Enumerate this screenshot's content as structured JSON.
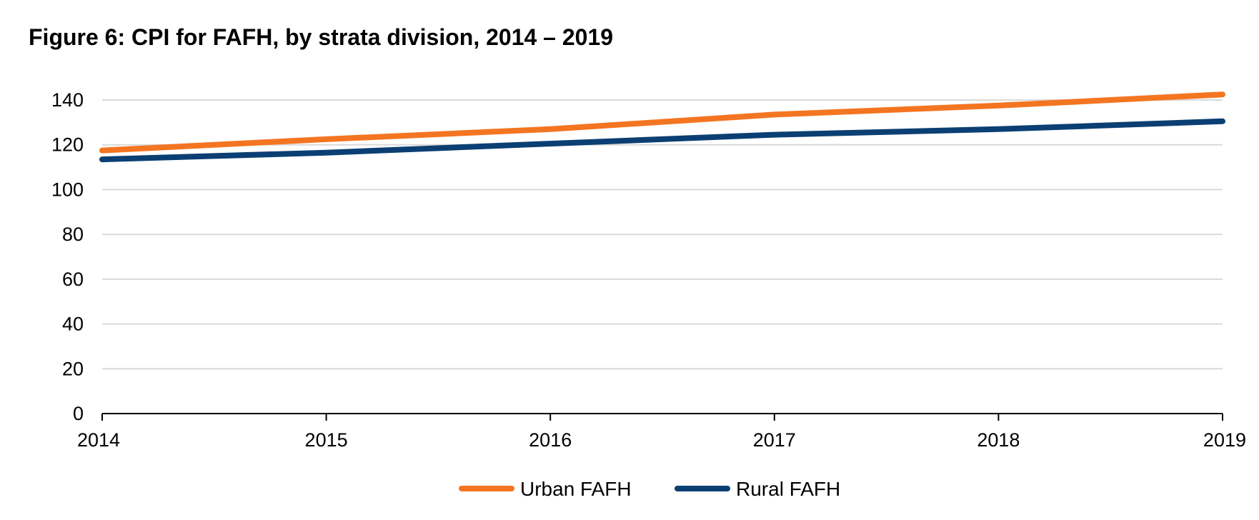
{
  "chart_data": {
    "type": "line",
    "title": "Figure 6: CPI for FAFH, by strata division, 2014 – 2019",
    "xlabel": "",
    "ylabel": "",
    "x": [
      "2014",
      "2015",
      "2016",
      "2017",
      "2018",
      "2019"
    ],
    "ylim": [
      0,
      140
    ],
    "yticks": [
      0,
      20,
      40,
      60,
      80,
      100,
      120,
      140
    ],
    "grid": true,
    "legend_position": "bottom-center",
    "series": [
      {
        "name": "Urban FAFH",
        "color": "#F47521",
        "values": [
          117.5,
          122.5,
          127,
          133.5,
          137.5,
          142.5
        ]
      },
      {
        "name": "Rural FAFH",
        "color": "#0B3F73",
        "values": [
          113.5,
          116.5,
          120.5,
          124.5,
          127,
          130.5
        ]
      }
    ]
  }
}
